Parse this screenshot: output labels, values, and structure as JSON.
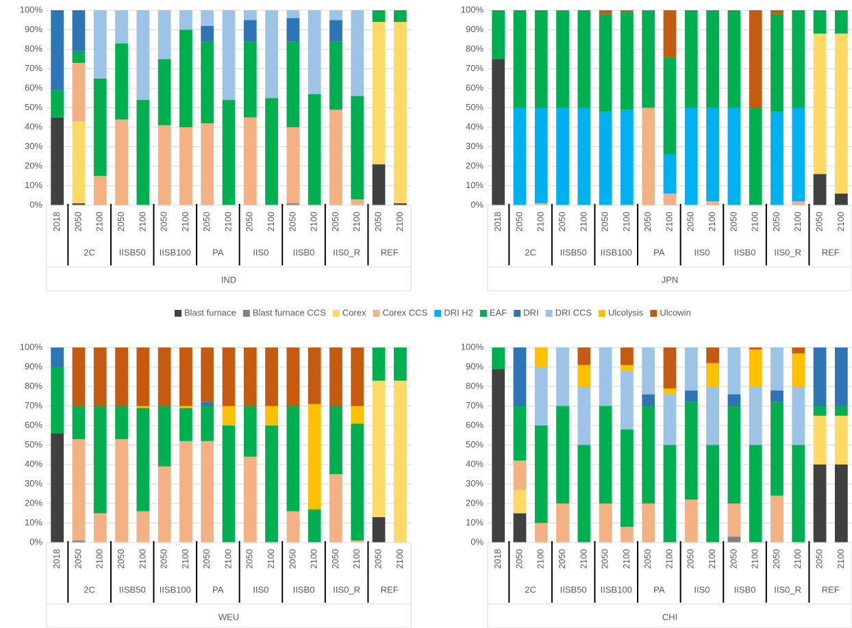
{
  "legend": [
    {
      "name": "Blast furnace",
      "color": "#404040"
    },
    {
      "name": "Blast furnace CCS",
      "color": "#808080"
    },
    {
      "name": "Corex",
      "color": "#ffd966"
    },
    {
      "name": "Corex CCS",
      "color": "#f4b183"
    },
    {
      "name": "DRI H2",
      "color": "#00b0f0"
    },
    {
      "name": "EAF",
      "color": "#00b050"
    },
    {
      "name": "DRI",
      "color": "#2e75b6"
    },
    {
      "name": "DRI CCS",
      "color": "#9dc3e6"
    },
    {
      "name": "Ulcolysis",
      "color": "#ffc000"
    },
    {
      "name": "Ulcowin",
      "color": "#c55a11"
    }
  ],
  "chart_data": [
    {
      "type": "bar",
      "stacked": true,
      "title": "IND",
      "categories": [
        "2018",
        "2050",
        "2100",
        "2050",
        "2100",
        "2050",
        "2100",
        "2050",
        "2100",
        "2050",
        "2100",
        "2050",
        "2100",
        "2050",
        "2100",
        "2050",
        "2100"
      ],
      "groups": [
        "2C",
        "IISB50",
        "IISB100",
        "PA",
        "IIS0",
        "IISB0",
        "IIS0_R",
        "REF"
      ],
      "ylim": [
        0,
        100
      ],
      "yticks": [
        {
          "value": 0,
          "label": "0%"
        },
        {
          "value": 10,
          "label": "10%"
        },
        {
          "value": 20,
          "label": "20%"
        },
        {
          "value": 30,
          "label": "30%"
        },
        {
          "value": 40,
          "label": "40%"
        },
        {
          "value": 50,
          "label": "50%"
        },
        {
          "value": 60,
          "label": "60%"
        },
        {
          "value": 70,
          "label": "70%"
        },
        {
          "value": 80,
          "label": "80%"
        },
        {
          "value": 90,
          "label": "90%"
        },
        {
          "value": 100,
          "label": "100%"
        }
      ],
      "grid": true,
      "series": [
        {
          "values": [
            45,
            1,
            0,
            0,
            0,
            0,
            0,
            0,
            0,
            0,
            0,
            0,
            0,
            0,
            0,
            21,
            1
          ]
        },
        {
          "values": [
            0,
            0,
            0,
            0,
            0,
            0,
            0,
            0,
            0,
            0,
            0,
            1,
            0,
            0,
            0,
            0,
            0
          ]
        },
        {
          "values": [
            0,
            42,
            0,
            0,
            0,
            0,
            0,
            0,
            0,
            0,
            0,
            0,
            0,
            0,
            0,
            73,
            93
          ]
        },
        {
          "values": [
            0,
            30,
            15,
            44,
            0,
            41,
            40,
            42,
            0,
            45,
            0,
            39,
            0,
            49,
            3,
            0,
            0
          ]
        },
        {
          "values": [
            0,
            0,
            0,
            0,
            0,
            0,
            0,
            0,
            0,
            0,
            0,
            0,
            0,
            0,
            0,
            0,
            0
          ]
        },
        {
          "values": [
            14,
            6,
            50,
            39,
            54,
            34,
            50,
            42,
            54,
            39,
            55,
            44,
            57,
            35,
            53,
            6,
            6
          ]
        },
        {
          "values": [
            41,
            21,
            0,
            0,
            0,
            0,
            0,
            8,
            0,
            11,
            0,
            12,
            0,
            11,
            0,
            0,
            0
          ]
        },
        {
          "values": [
            0,
            0,
            35,
            17,
            46,
            25,
            10,
            8,
            46,
            5,
            45,
            4,
            43,
            5,
            44,
            0,
            0
          ]
        },
        {
          "values": [
            0,
            0,
            0,
            0,
            0,
            0,
            0,
            0,
            0,
            0,
            0,
            0,
            0,
            0,
            0,
            0,
            0
          ]
        },
        {
          "values": [
            0,
            0,
            0,
            0,
            0,
            0,
            0,
            0,
            0,
            0,
            0,
            0,
            0,
            0,
            0,
            0,
            0
          ]
        }
      ]
    },
    {
      "type": "bar",
      "stacked": true,
      "title": "JPN",
      "categories": [
        "2018",
        "2050",
        "2100",
        "2050",
        "2100",
        "2050",
        "2100",
        "2050",
        "2100",
        "2050",
        "2100",
        "2050",
        "2100",
        "2050",
        "2100",
        "2050",
        "2100"
      ],
      "groups": [
        "2C",
        "IISB50",
        "IISB100",
        "PA",
        "IIS0",
        "IISB0",
        "IIS0_R",
        "REF"
      ],
      "ylim": [
        0,
        100
      ],
      "yticks": [
        {
          "value": 0,
          "label": "0%"
        },
        {
          "value": 10,
          "label": "10%"
        },
        {
          "value": 20,
          "label": "20%"
        },
        {
          "value": 30,
          "label": "30%"
        },
        {
          "value": 40,
          "label": "40%"
        },
        {
          "value": 50,
          "label": "50%"
        },
        {
          "value": 60,
          "label": "60%"
        },
        {
          "value": 70,
          "label": "70%"
        },
        {
          "value": 80,
          "label": "80%"
        },
        {
          "value": 90,
          "label": "90%"
        },
        {
          "value": 100,
          "label": "100%"
        }
      ],
      "grid": true,
      "series": [
        {
          "values": [
            75,
            0,
            0,
            0,
            0,
            0,
            0,
            0,
            0,
            0,
            0,
            0,
            0,
            0,
            0,
            16,
            6
          ]
        },
        {
          "values": [
            0,
            0,
            0,
            0,
            0,
            0,
            0,
            0,
            0,
            0,
            0,
            0,
            0,
            0,
            0,
            0,
            0
          ]
        },
        {
          "values": [
            0,
            0,
            0,
            0,
            0,
            0,
            0,
            0,
            0,
            0,
            0,
            0,
            0,
            0,
            0,
            72,
            82
          ]
        },
        {
          "values": [
            0,
            0,
            1,
            0,
            0,
            0,
            0,
            50,
            6,
            0,
            2,
            0,
            0,
            0,
            2,
            0,
            0
          ]
        },
        {
          "values": [
            0,
            50,
            49,
            50,
            50,
            48,
            49,
            0,
            20,
            50,
            48,
            50,
            0,
            48,
            48,
            0,
            0
          ]
        },
        {
          "values": [
            25,
            50,
            50,
            50,
            50,
            50,
            50,
            50,
            50,
            50,
            50,
            50,
            50,
            50,
            50,
            12,
            12
          ]
        },
        {
          "values": [
            0,
            0,
            0,
            0,
            0,
            0,
            0,
            0,
            0,
            0,
            0,
            0,
            0,
            0,
            0,
            0,
            0
          ]
        },
        {
          "values": [
            0,
            0,
            0,
            0,
            0,
            0,
            0,
            0,
            0,
            0,
            0,
            0,
            0,
            0,
            0,
            0,
            0
          ]
        },
        {
          "values": [
            0,
            0,
            0,
            0,
            0,
            0,
            0,
            0,
            0,
            0,
            0,
            0,
            0,
            0,
            0,
            0,
            0
          ]
        },
        {
          "values": [
            0,
            0,
            0,
            0,
            0,
            2,
            1,
            0,
            24,
            0,
            0,
            0,
            50,
            2,
            0,
            0,
            0
          ]
        }
      ]
    },
    {
      "type": "bar",
      "stacked": true,
      "title": "WEU",
      "categories": [
        "2018",
        "2050",
        "2100",
        "2050",
        "2100",
        "2050",
        "2100",
        "2050",
        "2100",
        "2050",
        "2100",
        "2050",
        "2100",
        "2050",
        "2100",
        "2050",
        "2100"
      ],
      "groups": [
        "2C",
        "IISB50",
        "IISB100",
        "PA",
        "IIS0",
        "IISB0",
        "IIS0_R",
        "REF"
      ],
      "ylim": [
        0,
        100
      ],
      "yticks": [
        {
          "value": 0,
          "label": "0%"
        },
        {
          "value": 10,
          "label": "10%"
        },
        {
          "value": 20,
          "label": "20%"
        },
        {
          "value": 30,
          "label": "30%"
        },
        {
          "value": 40,
          "label": "40%"
        },
        {
          "value": 50,
          "label": "50%"
        },
        {
          "value": 60,
          "label": "60%"
        },
        {
          "value": 70,
          "label": "70%"
        },
        {
          "value": 80,
          "label": "80%"
        },
        {
          "value": 90,
          "label": "90%"
        },
        {
          "value": 100,
          "label": "100%"
        }
      ],
      "grid": true,
      "series": [
        {
          "values": [
            56,
            0,
            0,
            0,
            0,
            0,
            0,
            0,
            0,
            0,
            0,
            0,
            0,
            0,
            0,
            13,
            0
          ]
        },
        {
          "values": [
            0,
            1,
            0,
            0,
            0,
            0,
            0,
            0,
            0,
            0,
            0,
            0,
            0,
            0,
            0,
            0,
            0
          ]
        },
        {
          "values": [
            0,
            0,
            0,
            0,
            0,
            0,
            0,
            0,
            0,
            0,
            0,
            0,
            0,
            0,
            0,
            70,
            83
          ]
        },
        {
          "values": [
            0,
            52,
            15,
            53,
            16,
            39,
            52,
            52,
            0,
            44,
            0,
            16,
            0,
            35,
            1,
            0,
            0
          ]
        },
        {
          "values": [
            0,
            0,
            0,
            0,
            0,
            0,
            0,
            0,
            0,
            0,
            0,
            0,
            0,
            0,
            0,
            0,
            0
          ]
        },
        {
          "values": [
            34,
            17,
            55,
            17,
            53,
            31,
            17,
            18,
            60,
            26,
            60,
            54,
            17,
            35,
            60,
            17,
            17
          ]
        },
        {
          "values": [
            10,
            0,
            0,
            0,
            0,
            0,
            0,
            2,
            0,
            0,
            0,
            0,
            0,
            0,
            0,
            0,
            0
          ]
        },
        {
          "values": [
            0,
            0,
            0,
            0,
            0,
            0,
            0,
            0,
            0,
            0,
            0,
            0,
            0,
            0,
            0,
            0,
            0
          ]
        },
        {
          "values": [
            0,
            0,
            0,
            0,
            1,
            0,
            1,
            0,
            10,
            0,
            10,
            0,
            54,
            0,
            9,
            0,
            0
          ]
        },
        {
          "values": [
            0,
            30,
            30,
            30,
            30,
            30,
            30,
            28,
            30,
            30,
            30,
            30,
            29,
            30,
            30,
            0,
            0
          ]
        }
      ]
    },
    {
      "type": "bar",
      "stacked": true,
      "title": "CHI",
      "categories": [
        "2018",
        "2050",
        "2100",
        "2050",
        "2100",
        "2050",
        "2100",
        "2050",
        "2100",
        "2050",
        "2100",
        "2050",
        "2100",
        "2050",
        "2100",
        "2050",
        "2100"
      ],
      "groups": [
        "2C",
        "IISB50",
        "IISB100",
        "PA",
        "IIS0",
        "IISB0",
        "IIS0_R",
        "REF"
      ],
      "ylim": [
        0,
        100
      ],
      "yticks": [
        {
          "value": 0,
          "label": "0%"
        },
        {
          "value": 10,
          "label": "10%"
        },
        {
          "value": 20,
          "label": "20%"
        },
        {
          "value": 30,
          "label": "30%"
        },
        {
          "value": 40,
          "label": "40%"
        },
        {
          "value": 50,
          "label": "50%"
        },
        {
          "value": 60,
          "label": "60%"
        },
        {
          "value": 70,
          "label": "70%"
        },
        {
          "value": 80,
          "label": "80%"
        },
        {
          "value": 90,
          "label": "90%"
        },
        {
          "value": 100,
          "label": "100%"
        }
      ],
      "grid": true,
      "series": [
        {
          "values": [
            89,
            15,
            0,
            0,
            0,
            0,
            0,
            0,
            0,
            0,
            0,
            0,
            0,
            0,
            0,
            40,
            40
          ]
        },
        {
          "values": [
            0,
            0,
            0,
            0,
            0,
            0,
            0,
            0,
            0,
            0,
            0,
            3,
            0,
            0,
            0,
            0,
            0
          ]
        },
        {
          "values": [
            0,
            12,
            0,
            0,
            0,
            0,
            0,
            0,
            0,
            0,
            0,
            0,
            0,
            0,
            0,
            25,
            25
          ]
        },
        {
          "values": [
            0,
            15,
            10,
            20,
            0,
            20,
            8,
            20,
            0,
            22,
            0,
            17,
            0,
            24,
            0,
            0,
            0
          ]
        },
        {
          "values": [
            0,
            0,
            0,
            0,
            0,
            0,
            0,
            0,
            0,
            0,
            0,
            0,
            0,
            0,
            0,
            0,
            0
          ]
        },
        {
          "values": [
            11,
            28,
            50,
            50,
            50,
            50,
            50,
            50,
            50,
            50,
            50,
            50,
            50,
            48,
            50,
            5,
            5
          ]
        },
        {
          "values": [
            0,
            30,
            0,
            0,
            0,
            0,
            0,
            6,
            0,
            6,
            0,
            6,
            0,
            6,
            0,
            30,
            30
          ]
        },
        {
          "values": [
            0,
            0,
            30,
            30,
            30,
            30,
            30,
            24,
            26,
            22,
            30,
            24,
            30,
            22,
            30,
            0,
            0
          ]
        },
        {
          "values": [
            0,
            0,
            10,
            0,
            11,
            0,
            3,
            0,
            3,
            0,
            12,
            0,
            19,
            0,
            17,
            0,
            0
          ]
        },
        {
          "values": [
            0,
            0,
            0,
            0,
            9,
            0,
            9,
            0,
            21,
            0,
            8,
            0,
            1,
            0,
            3,
            0,
            0
          ]
        }
      ]
    }
  ]
}
